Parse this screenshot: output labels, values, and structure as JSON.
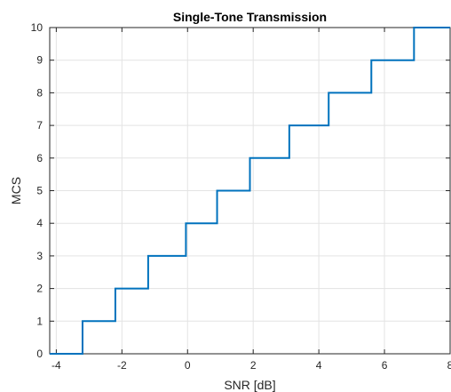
{
  "chart_data": {
    "type": "line",
    "title": "Single-Tone Transmission",
    "xlabel": "SNR [dB]",
    "ylabel": "MCS",
    "xlim": [
      -4.2,
      8
    ],
    "ylim": [
      0,
      10
    ],
    "xticks": [
      -4,
      -2,
      0,
      2,
      4,
      6,
      8
    ],
    "yticks": [
      0,
      1,
      2,
      3,
      4,
      5,
      6,
      7,
      8,
      9,
      10
    ],
    "grid": true,
    "step": "post",
    "series": [
      {
        "color": "#0072BD",
        "x": [
          -4.2,
          -3.2,
          -2.2,
          -1.2,
          -0.05,
          0.9,
          1.9,
          3.1,
          4.3,
          5.6,
          6.9,
          8
        ],
        "y": [
          0,
          1,
          2,
          3,
          4,
          5,
          6,
          7,
          8,
          9,
          10,
          10
        ]
      }
    ]
  }
}
